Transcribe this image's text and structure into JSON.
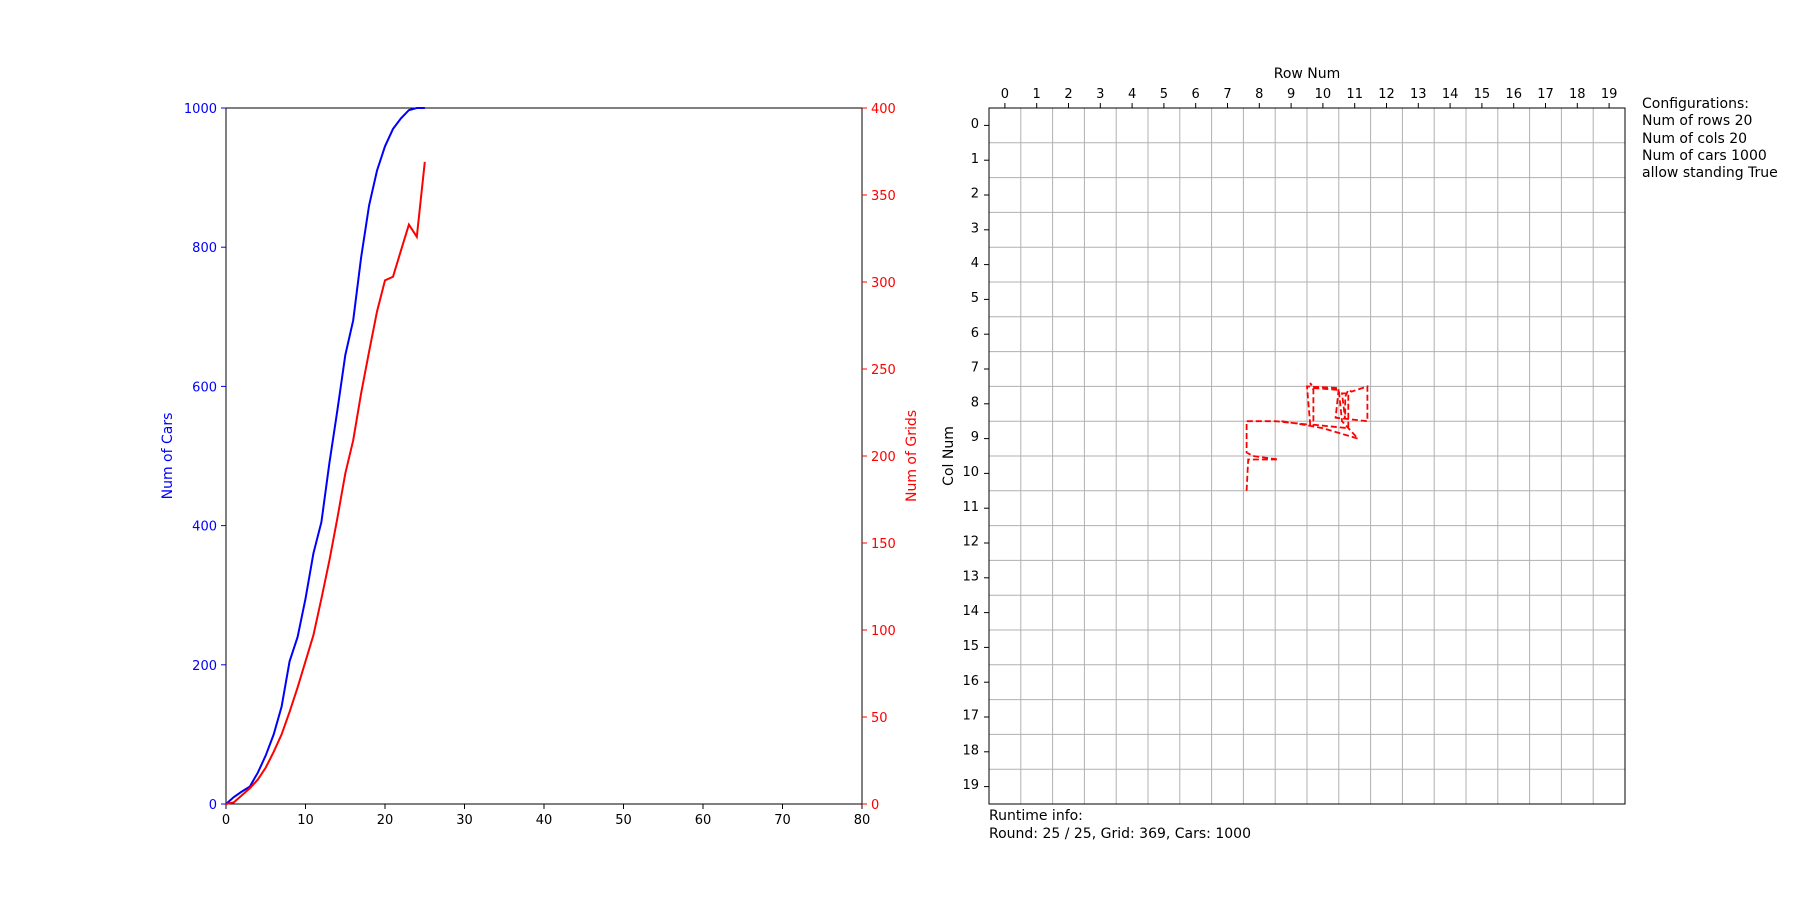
{
  "chart_data": [
    {
      "type": "line",
      "title": "",
      "xlabel": "",
      "ylabel": "Num of Cars",
      "y2label": "Num of Grids",
      "xlim": [
        0,
        80
      ],
      "ylim": [
        0,
        1000
      ],
      "y2lim": [
        0,
        400
      ],
      "xticks": [
        "0",
        "10",
        "20",
        "30",
        "40",
        "50",
        "60",
        "70",
        "80"
      ],
      "yticks": [
        "0",
        "200",
        "400",
        "600",
        "800",
        "1000"
      ],
      "y2ticks": [
        "0",
        "50",
        "100",
        "150",
        "200",
        "250",
        "300",
        "350",
        "400"
      ],
      "grid": false,
      "series": [
        {
          "axis": "left",
          "color": "#0000ff",
          "x": [
            0,
            1,
            2,
            3,
            4,
            5,
            6,
            7,
            8,
            9,
            10,
            11,
            12,
            13,
            14,
            15,
            16,
            17,
            18,
            19,
            20,
            21,
            22,
            23,
            24,
            25
          ],
          "y": [
            0,
            10,
            18,
            25,
            45,
            70,
            100,
            140,
            205,
            240,
            295,
            360,
            405,
            490,
            565,
            645,
            695,
            785,
            860,
            910,
            945,
            970,
            985,
            997,
            1000,
            1000
          ]
        },
        {
          "axis": "right",
          "color": "#ff0000",
          "x": [
            0,
            1,
            2,
            3,
            4,
            5,
            6,
            7,
            8,
            9,
            10,
            11,
            12,
            13,
            14,
            15,
            16,
            17,
            18,
            19,
            20,
            21,
            22,
            23,
            24,
            25
          ],
          "y": [
            0,
            1,
            5,
            9,
            14,
            21,
            30,
            40,
            53,
            67,
            82,
            97,
            118,
            140,
            164,
            190,
            209,
            236,
            260,
            283,
            301,
            303,
            318,
            333,
            326,
            369
          ]
        }
      ]
    },
    {
      "type": "line",
      "title": "",
      "xlabel": "Row Num",
      "ylabel": "Col Num",
      "xlim": [
        0,
        20
      ],
      "ylim": [
        0,
        20
      ],
      "xticks": [
        "0",
        "1",
        "2",
        "3",
        "4",
        "5",
        "6",
        "7",
        "8",
        "9",
        "10",
        "11",
        "12",
        "13",
        "14",
        "15",
        "16",
        "17",
        "18",
        "19"
      ],
      "yticks": [
        "0",
        "1",
        "2",
        "3",
        "4",
        "5",
        "6",
        "7",
        "8",
        "9",
        "10",
        "11",
        "12",
        "13",
        "14",
        "15",
        "16",
        "17",
        "18",
        "19"
      ],
      "grid": true,
      "series": [
        {
          "color": "#ff0000",
          "style": "dashed",
          "points": [
            [
              8.1,
              11.0
            ],
            [
              8.15,
              10.1
            ],
            [
              9.1,
              10.1
            ],
            [
              8.3,
              10.0
            ],
            [
              8.1,
              9.9
            ],
            [
              8.1,
              9.0
            ],
            [
              9.0,
              9.0
            ],
            [
              10.1,
              9.1
            ],
            [
              10.0,
              8.0
            ],
            [
              11.0,
              8.05
            ],
            [
              10.9,
              8.9
            ],
            [
              11.9,
              9.0
            ],
            [
              11.9,
              8.0
            ],
            [
              11.4,
              8.15
            ],
            [
              11.3,
              8.1
            ],
            [
              11.2,
              8.3
            ],
            [
              11.2,
              8.95
            ],
            [
              11.1,
              8.2
            ],
            [
              11.3,
              8.2
            ],
            [
              11.3,
              9.2
            ],
            [
              10.2,
              9.1
            ],
            [
              10.2,
              8.1
            ],
            [
              10.1,
              7.9
            ],
            [
              10.2,
              8.05
            ],
            [
              11.0,
              8.1
            ],
            [
              11.1,
              9.0
            ],
            [
              11.6,
              9.5
            ],
            [
              10.5,
              9.2
            ],
            [
              9.9,
              9.1
            ],
            [
              9.2,
              9.0
            ]
          ]
        }
      ]
    }
  ],
  "config": {
    "title": "Configurations:",
    "lines": [
      "Num of rows 20",
      "Num of cols 20",
      "Num of cars 1000",
      "allow standing True"
    ]
  },
  "runtime": {
    "title": "Runtime info:",
    "line": "Round: 25 / 25, Grid: 369, Cars: 1000"
  }
}
